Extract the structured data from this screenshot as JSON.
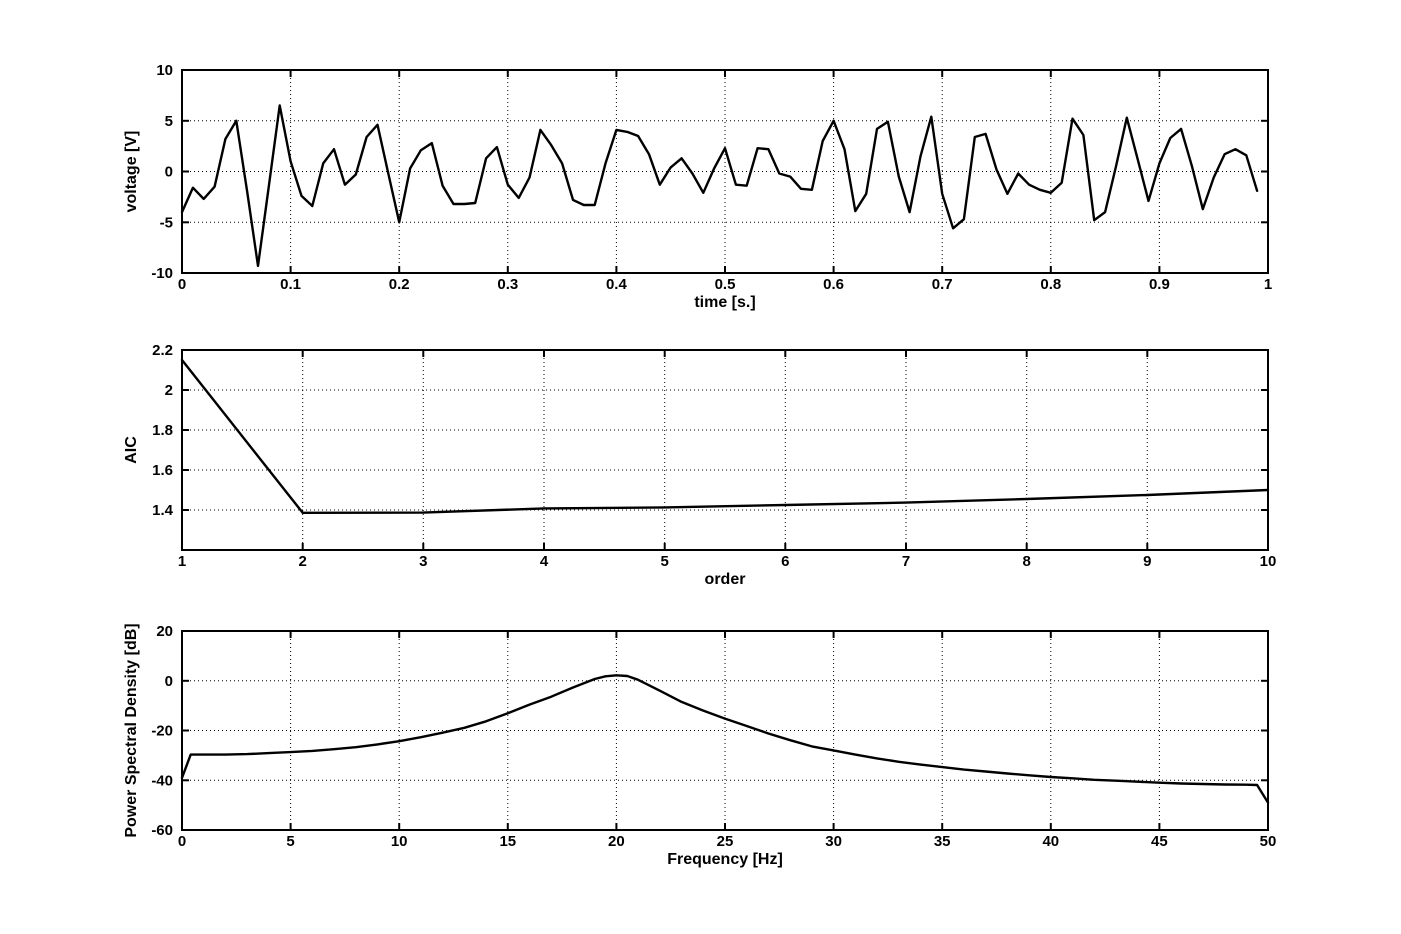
{
  "figure": {
    "background": "#ffffff",
    "axis_color": "#000000",
    "grid_color": "#000000",
    "line_color": "#000000"
  },
  "chart_data": [
    {
      "id": "signal",
      "type": "line",
      "title": "",
      "xlabel": "time [s.]",
      "ylabel": "voltage [V]",
      "xlim": [
        0,
        1
      ],
      "ylim": [
        -10,
        10
      ],
      "grid": true,
      "legend": "none",
      "xticks": [
        0,
        0.1,
        0.2,
        0.3,
        0.4,
        0.5,
        0.6,
        0.7,
        0.8,
        0.9,
        1
      ],
      "xtick_labels": [
        "0",
        "0.1",
        "0.2",
        "0.3",
        "0.4",
        "0.5",
        "0.6",
        "0.7",
        "0.8",
        "0.9",
        "1"
      ],
      "yticks": [
        -10,
        -5,
        0,
        5,
        10
      ],
      "ytick_labels": [
        "-10",
        "-5",
        "0",
        "5",
        "10"
      ],
      "x_start": 0,
      "x_step": 0.01,
      "y": [
        -4.0,
        -1.6,
        -2.7,
        -1.5,
        3.2,
        5.0,
        -2.0,
        -9.3,
        -1.4,
        6.5,
        1.0,
        -2.4,
        -3.4,
        0.8,
        2.2,
        -1.3,
        -0.3,
        3.4,
        4.6,
        -0.2,
        -5.0,
        0.3,
        2.1,
        2.8,
        -1.4,
        -3.2,
        -3.2,
        -3.1,
        1.3,
        2.4,
        -1.3,
        -2.6,
        -0.6,
        4.1,
        2.6,
        0.8,
        -2.8,
        -3.3,
        -3.3,
        0.8,
        4.1,
        3.9,
        3.5,
        1.7,
        -1.3,
        0.4,
        1.3,
        -0.2,
        -2.1,
        0.3,
        2.3,
        -1.3,
        -1.4,
        2.3,
        2.2,
        -0.2,
        -0.5,
        -1.7,
        -1.8,
        3.0,
        5.0,
        2.2,
        -3.9,
        -2.2,
        4.2,
        4.9,
        -0.5,
        -4.0,
        1.5,
        5.4,
        -2.2,
        -5.6,
        -4.7,
        3.4,
        3.7,
        0.2,
        -2.2,
        -0.2,
        -1.3,
        -1.8,
        -2.1,
        -1.1,
        5.2,
        3.6,
        -4.8,
        -4.0,
        0.5,
        5.3,
        1.2,
        -2.9,
        0.8,
        3.3,
        4.2,
        0.5,
        -3.7,
        -0.6,
        1.7,
        2.2,
        1.6,
        -1.9
      ]
    },
    {
      "id": "aic",
      "type": "line",
      "title": "",
      "xlabel": "order",
      "ylabel": "AIC",
      "xlim": [
        1,
        10
      ],
      "ylim": [
        1.2,
        2.2
      ],
      "grid": true,
      "legend": "none",
      "xticks": [
        1,
        2,
        3,
        4,
        5,
        6,
        7,
        8,
        9,
        10
      ],
      "xtick_labels": [
        "1",
        "2",
        "3",
        "4",
        "5",
        "6",
        "7",
        "8",
        "9",
        "10"
      ],
      "yticks": [
        1.4,
        1.6,
        1.8,
        2.0,
        2.2
      ],
      "ytick_labels": [
        "1.4",
        "1.6",
        "1.8",
        "2",
        "2.2"
      ],
      "x": [
        1,
        2,
        3,
        4,
        5,
        6,
        7,
        8,
        9,
        10
      ],
      "y": [
        2.15,
        1.386,
        1.387,
        1.408,
        1.413,
        1.425,
        1.437,
        1.455,
        1.475,
        1.5
      ]
    },
    {
      "id": "psd",
      "type": "line",
      "title": "",
      "xlabel": "Frequency [Hz]",
      "ylabel": "Power Spectral Density [dB]",
      "xlim": [
        0,
        50
      ],
      "ylim": [
        -60,
        20
      ],
      "grid": true,
      "legend": "none",
      "xticks": [
        0,
        5,
        10,
        15,
        20,
        25,
        30,
        35,
        40,
        45,
        50
      ],
      "xtick_labels": [
        "0",
        "5",
        "10",
        "15",
        "20",
        "25",
        "30",
        "35",
        "40",
        "45",
        "50"
      ],
      "yticks": [
        -60,
        -40,
        -20,
        0,
        20
      ],
      "ytick_labels": [
        "-60",
        "-40",
        "-20",
        "0",
        "20"
      ],
      "x": [
        0,
        0.4,
        1,
        2,
        3,
        4,
        5,
        6,
        7,
        8,
        9,
        10,
        11,
        12,
        13,
        14,
        15,
        16,
        17,
        18,
        19,
        19.5,
        20,
        20.5,
        21,
        22,
        23,
        24,
        25,
        26,
        27,
        28,
        29,
        30,
        31,
        32,
        33,
        34,
        35,
        36,
        37,
        38,
        39,
        40,
        41,
        42,
        43,
        44,
        45,
        46,
        47,
        48,
        49,
        49.5,
        50
      ],
      "y": [
        -39,
        -29.7,
        -29.7,
        -29.7,
        -29.5,
        -29.1,
        -28.7,
        -28.2,
        -27.5,
        -26.7,
        -25.6,
        -24.3,
        -22.7,
        -20.9,
        -18.9,
        -16.3,
        -13.1,
        -9.6,
        -6.4,
        -2.7,
        0.7,
        1.8,
        2.2,
        1.9,
        0.4,
        -4.0,
        -8.5,
        -12.0,
        -15.2,
        -18.2,
        -21.2,
        -23.9,
        -26.4,
        -28.0,
        -29.7,
        -31.2,
        -32.6,
        -33.7,
        -34.7,
        -35.7,
        -36.5,
        -37.3,
        -38.0,
        -38.7,
        -39.2,
        -39.8,
        -40.2,
        -40.6,
        -41.0,
        -41.3,
        -41.5,
        -41.7,
        -41.8,
        -41.9,
        -49.0
      ]
    }
  ]
}
